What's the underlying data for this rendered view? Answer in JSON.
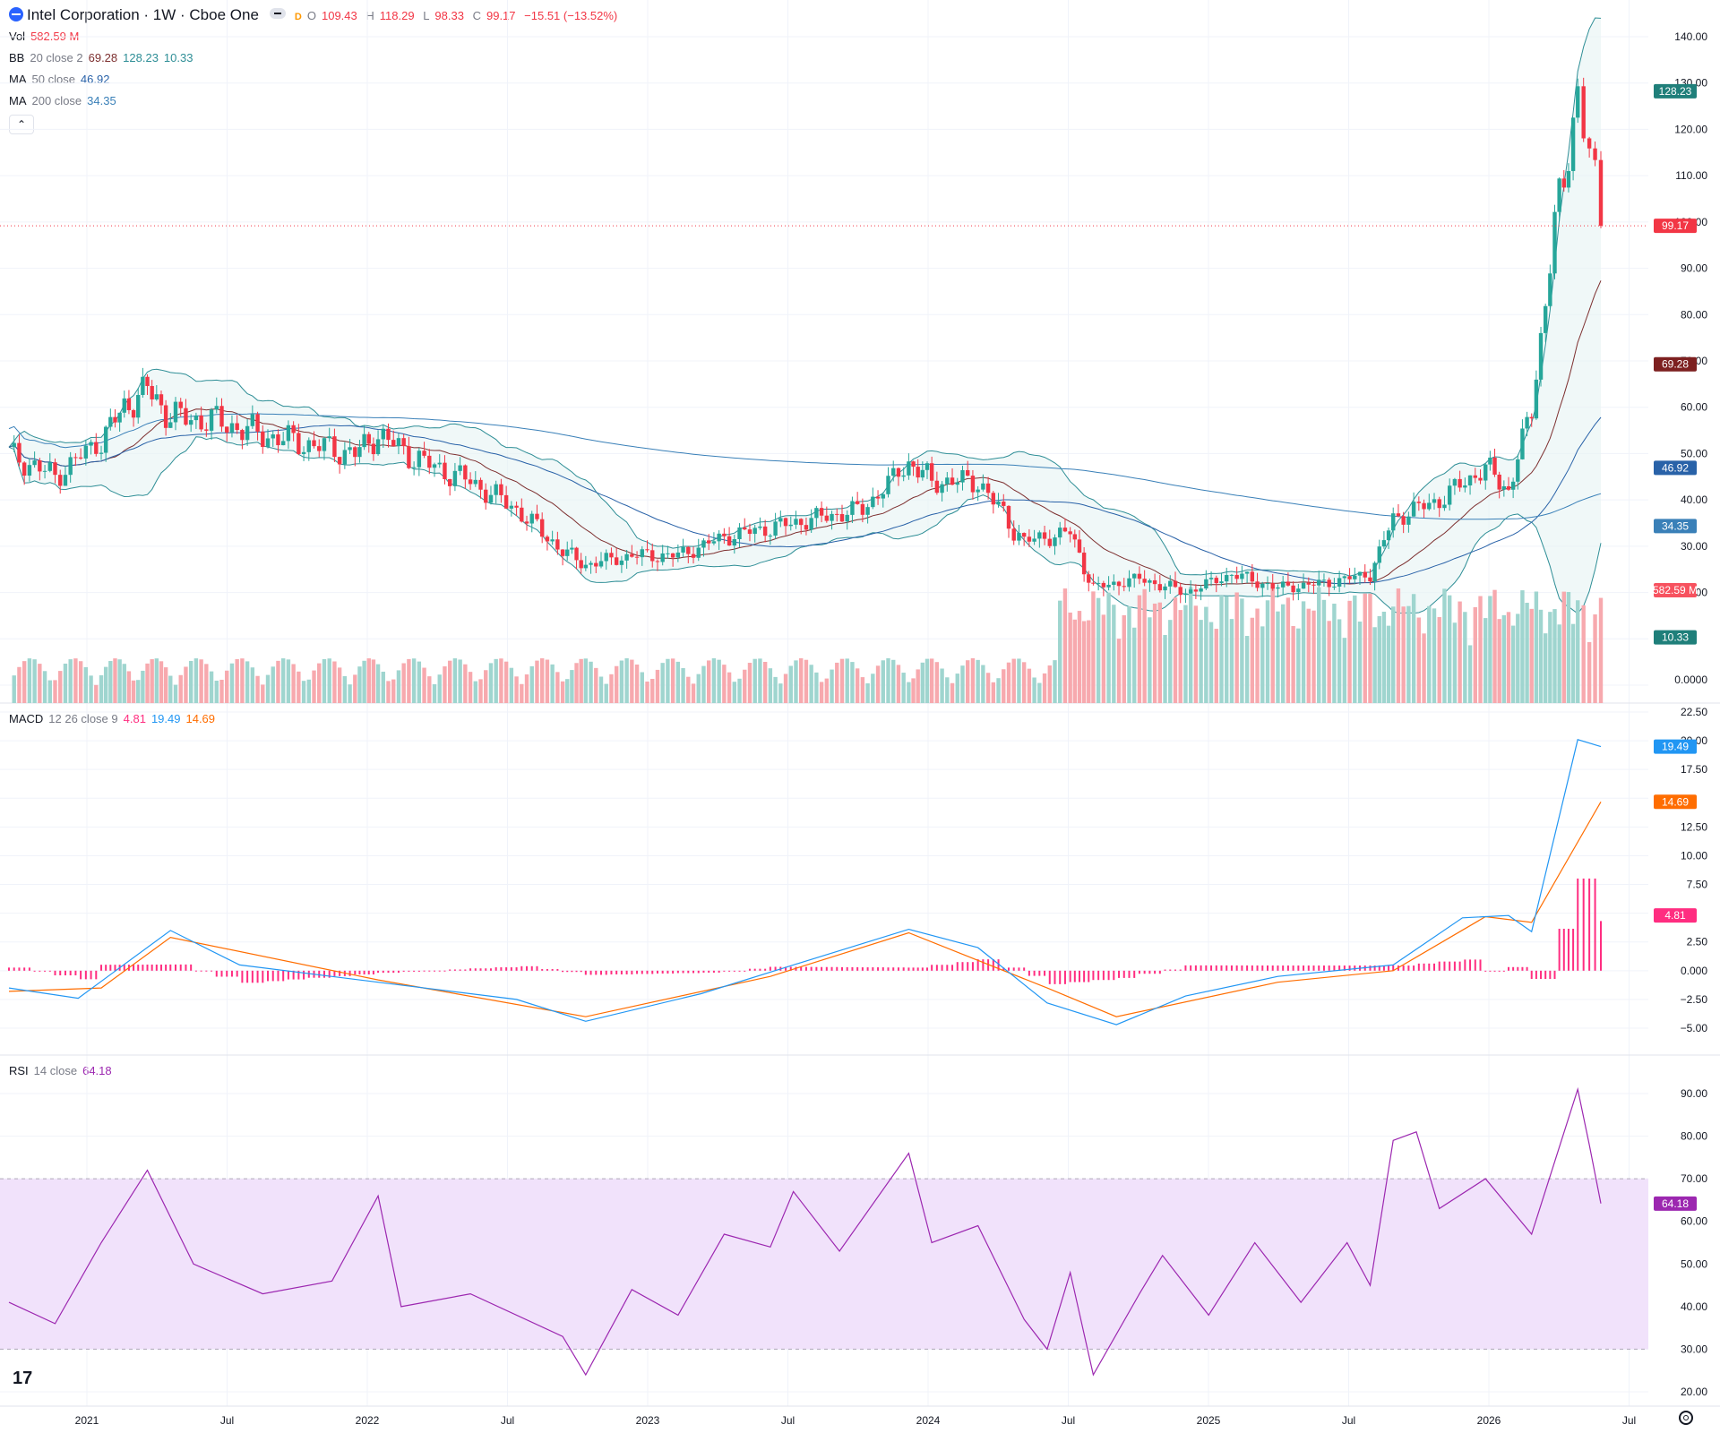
{
  "header": {
    "symbol_title": "Intel Corporation · 1W · Cboe One",
    "badge": "D",
    "ohlc": {
      "o_label": "O",
      "o_value": "109.43",
      "h_label": "H",
      "h_value": "118.29",
      "l_label": "L",
      "l_value": "98.33",
      "c_label": "C",
      "c_value": "99.17",
      "change": "−15.51 (−13.52%)"
    }
  },
  "legend": {
    "vol": {
      "label": "Vol",
      "value": "582.59 M"
    },
    "bb": {
      "label": "BB",
      "params": "20 close 2",
      "basis": "69.28",
      "upper": "128.23",
      "lower": "10.33"
    },
    "ma50": {
      "label": "MA",
      "params": "50 close",
      "value": "46.92"
    },
    "ma200": {
      "label": "MA",
      "params": "200 close",
      "value": "34.35"
    },
    "macd": {
      "label": "MACD",
      "params": "12 26 close 9",
      "hist": "4.81",
      "macd": "19.49",
      "signal": "14.69"
    },
    "rsi": {
      "label": "RSI",
      "params": "14 close",
      "value": "64.18"
    }
  },
  "colors": {
    "up": "#26a69a",
    "down": "#f23645",
    "bb_basis": "#7d2f2f",
    "bb_band": "#2e8e96",
    "ma50": "#2962a8",
    "ma200": "#3a80b8",
    "macd": "#2196f3",
    "signal": "#ff6d00",
    "hist": "#ff2d80",
    "rsi": "#9c27b0",
    "rsi_band": "#f1e2fb"
  },
  "price_axis": [
    "140.00",
    "130.00",
    "120.00",
    "110.00",
    "100.00",
    "90.00",
    "80.00",
    "70.00",
    "60.00",
    "50.00",
    "40.00",
    "30.00",
    "20.00",
    "0.0000"
  ],
  "macd_axis": [
    "22.50",
    "20.00",
    "17.50",
    "12.50",
    "10.00",
    "7.50",
    "2.50",
    "0.000",
    "−2.50",
    "−5.00"
  ],
  "rsi_axis": [
    "90.00",
    "80.00",
    "70.00",
    "60.00",
    "50.00",
    "40.00",
    "30.00",
    "20.00"
  ],
  "time_axis": [
    "2021",
    "Jul",
    "2022",
    "Jul",
    "2023",
    "Jul",
    "2024",
    "Jul",
    "2025",
    "Jul",
    "2026",
    "Jul"
  ],
  "badges": {
    "bb_upper": "128.23",
    "close": "99.17",
    "bb_basis": "69.28",
    "ma50": "46.92",
    "ma200": "34.35",
    "vol": "582.59 M",
    "bb_lower": "10.33",
    "macd": "19.49",
    "signal": "14.69",
    "hist": "4.81",
    "rsi": "64.18"
  },
  "chart_data": [
    {
      "type": "candlestick",
      "title": "Intel Corporation · 1W · Cboe One",
      "x_range": [
        "2020-09",
        "2026-07"
      ],
      "y_range": [
        0,
        140
      ],
      "weekly_close_path": [
        {
          "date": "2020-09",
          "close": 50
        },
        {
          "date": "2020-11",
          "close": 45
        },
        {
          "date": "2021-01",
          "close": 53
        },
        {
          "date": "2021-02",
          "close": 60
        },
        {
          "date": "2021-03",
          "close": 64
        },
        {
          "date": "2021-04",
          "close": 58
        },
        {
          "date": "2021-06",
          "close": 57
        },
        {
          "date": "2021-08",
          "close": 54
        },
        {
          "date": "2021-10",
          "close": 52
        },
        {
          "date": "2021-12",
          "close": 50
        },
        {
          "date": "2022-01",
          "close": 54
        },
        {
          "date": "2022-03",
          "close": 48
        },
        {
          "date": "2022-05",
          "close": 44
        },
        {
          "date": "2022-07",
          "close": 38
        },
        {
          "date": "2022-09",
          "close": 29
        },
        {
          "date": "2022-10",
          "close": 26
        },
        {
          "date": "2022-12",
          "close": 28
        },
        {
          "date": "2023-02",
          "close": 28
        },
        {
          "date": "2023-04",
          "close": 32
        },
        {
          "date": "2023-06",
          "close": 34
        },
        {
          "date": "2023-08",
          "close": 36
        },
        {
          "date": "2023-10",
          "close": 38
        },
        {
          "date": "2023-12",
          "close": 48
        },
        {
          "date": "2024-01",
          "close": 44
        },
        {
          "date": "2024-03",
          "close": 44
        },
        {
          "date": "2024-05",
          "close": 31
        },
        {
          "date": "2024-07",
          "close": 33
        },
        {
          "date": "2024-08",
          "close": 21
        },
        {
          "date": "2024-10",
          "close": 23
        },
        {
          "date": "2024-12",
          "close": 20
        },
        {
          "date": "2025-02",
          "close": 24
        },
        {
          "date": "2025-04",
          "close": 21
        },
        {
          "date": "2025-06",
          "close": 22
        },
        {
          "date": "2025-08",
          "close": 24
        },
        {
          "date": "2025-09",
          "close": 36
        },
        {
          "date": "2025-11",
          "close": 40
        },
        {
          "date": "2026-01",
          "close": 47
        },
        {
          "date": "2026-02",
          "close": 42
        },
        {
          "date": "2026-03",
          "close": 60
        },
        {
          "date": "2026-04",
          "close": 98
        },
        {
          "date": "2026-05",
          "close": 128
        },
        {
          "date": "2026-05b",
          "close": 114
        },
        {
          "date": "2026-06",
          "close": 99.17
        }
      ],
      "last_bar": {
        "open": 109.43,
        "high": 118.29,
        "low": 98.33,
        "close": 99.17
      },
      "bollinger": {
        "basis": 69.28,
        "upper": 128.23,
        "lower": 10.33
      },
      "ma50": 46.92,
      "ma200": 34.35,
      "volume_last": "582.59 M"
    },
    {
      "type": "line",
      "title": "MACD 12 26 close 9",
      "y_range": [
        -5,
        22.5
      ],
      "series": [
        {
          "name": "MACD",
          "values_path": [
            {
              "date": "2020-09",
              "v": -1.5
            },
            {
              "date": "2020-12",
              "v": -2.4
            },
            {
              "date": "2021-04",
              "v": 3.5
            },
            {
              "date": "2021-07",
              "v": 0.5
            },
            {
              "date": "2022-01",
              "v": -1.0
            },
            {
              "date": "2022-07",
              "v": -2.5
            },
            {
              "date": "2022-10",
              "v": -4.4
            },
            {
              "date": "2023-03",
              "v": -2.0
            },
            {
              "date": "2023-07",
              "v": 0.5
            },
            {
              "date": "2023-12",
              "v": 3.6
            },
            {
              "date": "2024-03",
              "v": 2.0
            },
            {
              "date": "2024-06",
              "v": -2.8
            },
            {
              "date": "2024-09",
              "v": -4.7
            },
            {
              "date": "2024-12",
              "v": -2.2
            },
            {
              "date": "2025-04",
              "v": -0.5
            },
            {
              "date": "2025-09",
              "v": 0.5
            },
            {
              "date": "2025-12",
              "v": 4.6
            },
            {
              "date": "2026-02",
              "v": 4.8
            },
            {
              "date": "2026-03",
              "v": 3.4
            },
            {
              "date": "2026-05",
              "v": 20.1
            },
            {
              "date": "2026-06",
              "v": 19.49
            }
          ]
        },
        {
          "name": "Signal",
          "values_path": [
            {
              "date": "2020-09",
              "v": -1.8
            },
            {
              "date": "2021-01",
              "v": -1.5
            },
            {
              "date": "2021-04",
              "v": 2.9
            },
            {
              "date": "2022-01",
              "v": -0.8
            },
            {
              "date": "2022-10",
              "v": -4.0
            },
            {
              "date": "2023-06",
              "v": -0.5
            },
            {
              "date": "2023-12",
              "v": 3.3
            },
            {
              "date": "2024-06",
              "v": -1.5
            },
            {
              "date": "2024-09",
              "v": -4.0
            },
            {
              "date": "2025-04",
              "v": -1.0
            },
            {
              "date": "2025-09",
              "v": 0.0
            },
            {
              "date": "2026-01",
              "v": 4.7
            },
            {
              "date": "2026-03",
              "v": 4.2
            },
            {
              "date": "2026-06",
              "v": 14.69
            }
          ]
        }
      ],
      "histogram_last": 4.81
    },
    {
      "type": "line",
      "title": "RSI 14 close",
      "y_range": [
        20,
        90
      ],
      "band": [
        30,
        70
      ],
      "series": [
        {
          "name": "RSI",
          "values_path": [
            {
              "date": "2020-09",
              "v": 41
            },
            {
              "date": "2020-11",
              "v": 36
            },
            {
              "date": "2021-01",
              "v": 55
            },
            {
              "date": "2021-03",
              "v": 72
            },
            {
              "date": "2021-05",
              "v": 50
            },
            {
              "date": "2021-08",
              "v": 43
            },
            {
              "date": "2021-11",
              "v": 46
            },
            {
              "date": "2022-01",
              "v": 66
            },
            {
              "date": "2022-02",
              "v": 40
            },
            {
              "date": "2022-05",
              "v": 43
            },
            {
              "date": "2022-09",
              "v": 33
            },
            {
              "date": "2022-10",
              "v": 24
            },
            {
              "date": "2022-12",
              "v": 44
            },
            {
              "date": "2023-02",
              "v": 38
            },
            {
              "date": "2023-04",
              "v": 57
            },
            {
              "date": "2023-06",
              "v": 54
            },
            {
              "date": "2023-07",
              "v": 67
            },
            {
              "date": "2023-09",
              "v": 53
            },
            {
              "date": "2023-12",
              "v": 76
            },
            {
              "date": "2024-01",
              "v": 55
            },
            {
              "date": "2024-03",
              "v": 59
            },
            {
              "date": "2024-05",
              "v": 37
            },
            {
              "date": "2024-06",
              "v": 30
            },
            {
              "date": "2024-07",
              "v": 48
            },
            {
              "date": "2024-08",
              "v": 24
            },
            {
              "date": "2024-10",
              "v": 43
            },
            {
              "date": "2024-11",
              "v": 52
            },
            {
              "date": "2025-01",
              "v": 38
            },
            {
              "date": "2025-03",
              "v": 55
            },
            {
              "date": "2025-05",
              "v": 41
            },
            {
              "date": "2025-07",
              "v": 55
            },
            {
              "date": "2025-08",
              "v": 45
            },
            {
              "date": "2025-09",
              "v": 79
            },
            {
              "date": "2025-10",
              "v": 81
            },
            {
              "date": "2025-11",
              "v": 63
            },
            {
              "date": "2026-01",
              "v": 70
            },
            {
              "date": "2026-03",
              "v": 57
            },
            {
              "date": "2026-05",
              "v": 91
            },
            {
              "date": "2026-05b",
              "v": 78
            },
            {
              "date": "2026-06",
              "v": 64.18
            }
          ]
        }
      ]
    }
  ]
}
